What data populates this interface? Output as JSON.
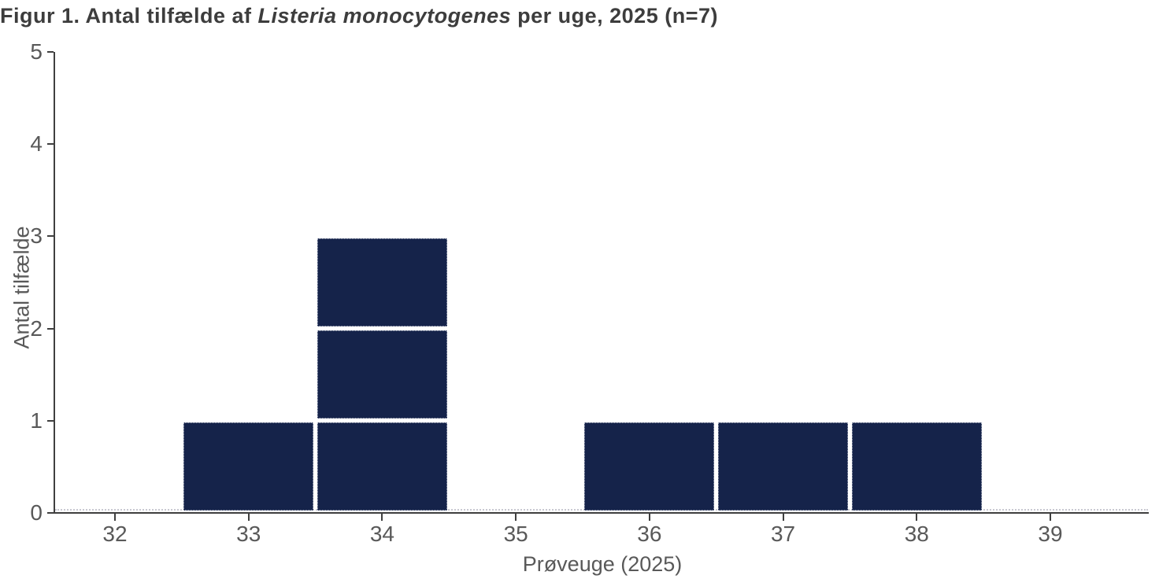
{
  "title": {
    "prefix": "Figur 1. Antal tilfælde af ",
    "italic": "Listeria monocytogenes",
    "suffix": " per uge, 2025 (n=7)"
  },
  "colors": {
    "bar": "#15234a",
    "axis": "#3f3f3f",
    "tick_label": "#595959",
    "title_text": "#3d3d3d",
    "dotted_baseline": "#c9c9d1"
  },
  "chart_data": {
    "type": "bar",
    "title": "Figur 1. Antal tilfælde af Listeria monocytogenes per uge, 2025 (n=7)",
    "subtitle": "",
    "xlabel": "Prøveuge (2025)",
    "ylabel": "Antal tilfælde",
    "categories": [
      "32",
      "33",
      "34",
      "35",
      "36",
      "37",
      "38",
      "39"
    ],
    "values": [
      0,
      1,
      3,
      0,
      1,
      1,
      1,
      0
    ],
    "n_total": 7,
    "ylim": [
      0,
      5
    ],
    "yticks": [
      0,
      1,
      2,
      3,
      4,
      5
    ],
    "bar_color": "#15234a",
    "stacked_unit_blocks": true,
    "legend": "none",
    "grid": "off"
  }
}
